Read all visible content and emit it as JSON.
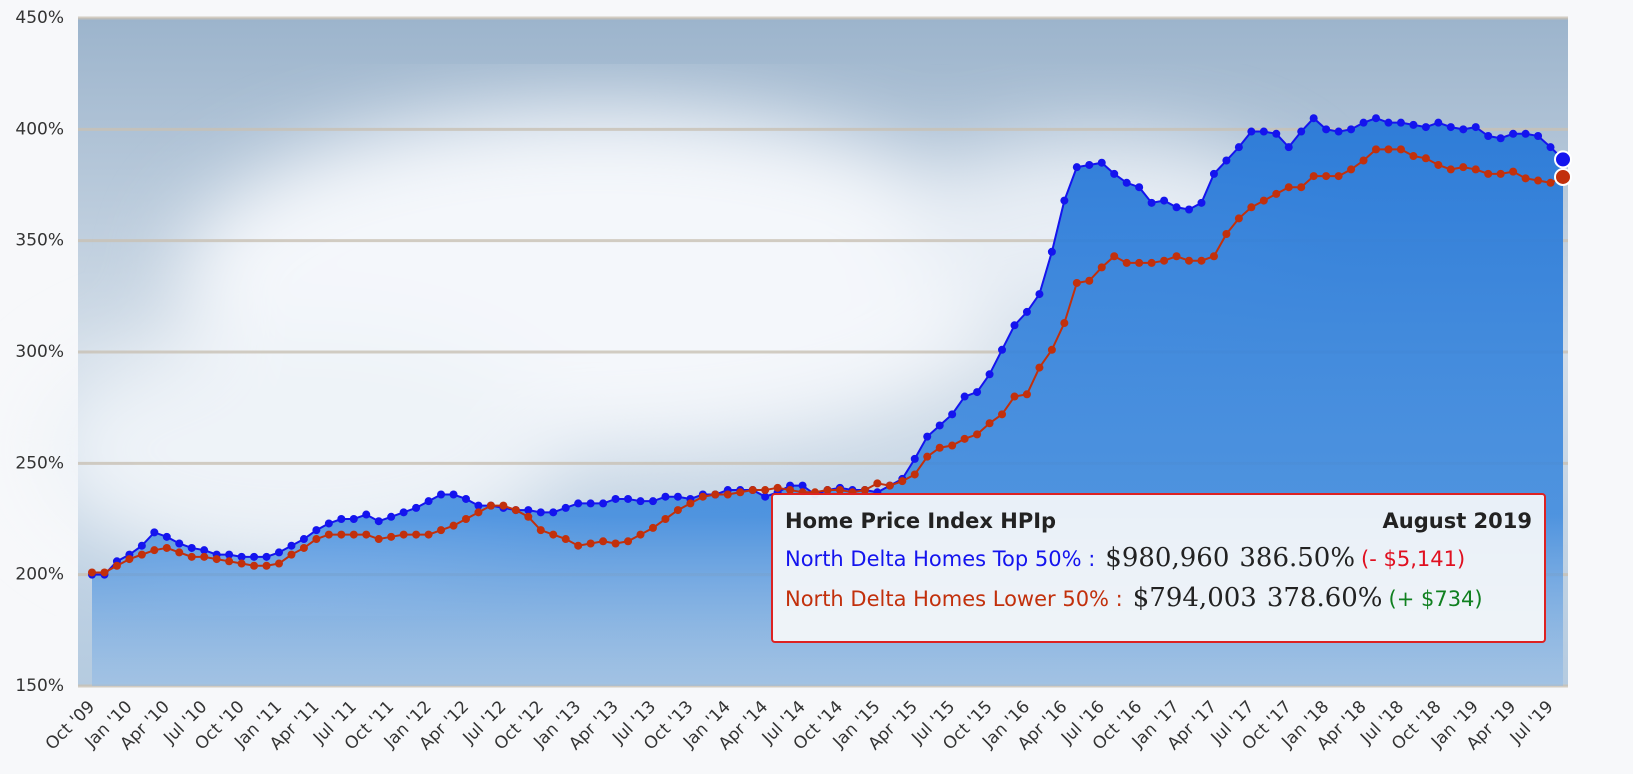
{
  "chart_data": {
    "type": "line",
    "categories": [
      "Oct '09",
      null,
      null,
      "Jan '10",
      null,
      null,
      "Apr '10",
      null,
      null,
      "Jul '10",
      null,
      null,
      "Oct '10",
      null,
      null,
      "Jan '11",
      null,
      null,
      "Apr '11",
      null,
      null,
      "Jul '11",
      null,
      null,
      "Oct '11",
      null,
      null,
      "Jan '12",
      null,
      null,
      "Apr '12",
      null,
      null,
      "Jul '12",
      null,
      null,
      "Oct '12",
      null,
      null,
      "Jan '13",
      null,
      null,
      "Apr '13",
      null,
      null,
      "Jul '13",
      null,
      null,
      "Oct '13",
      null,
      null,
      "Jan '14",
      null,
      null,
      "Apr '14",
      null,
      null,
      "Jul '14",
      null,
      null,
      "Oct '14",
      null,
      null,
      "Jan '15",
      null,
      null,
      "Apr '15",
      null,
      null,
      "Jul '15",
      null,
      null,
      "Oct '15",
      null,
      null,
      "Jan '16",
      null,
      null,
      "Apr '16",
      null,
      null,
      "Jul '16",
      null,
      null,
      "Oct '16",
      null,
      null,
      "Jan '17",
      null,
      null,
      "Apr '17",
      null,
      null,
      "Jul '17",
      null,
      null,
      "Oct '17",
      null,
      null,
      "Jan '18",
      null,
      null,
      "Apr '18",
      null,
      null,
      "Jul '18",
      null,
      null,
      "Oct '18",
      null,
      null,
      "Jan '19",
      null,
      null,
      "Apr '19",
      null,
      null,
      "Jul '19",
      null
    ],
    "series": [
      {
        "name": "North Delta Homes Top 50%",
        "color": "#1414ee",
        "values": [
          200,
          200,
          206,
          209,
          213,
          219,
          217,
          214,
          212,
          211,
          209,
          209,
          208,
          208,
          208,
          210,
          213,
          216,
          220,
          223,
          225,
          225,
          227,
          224,
          226,
          228,
          230,
          233,
          236,
          236,
          234,
          231,
          231,
          230,
          229,
          229,
          228,
          228,
          230,
          232,
          232,
          232,
          234,
          234,
          233,
          233,
          235,
          235,
          234,
          236,
          236,
          238,
          238,
          238,
          235,
          237,
          240,
          240,
          236,
          238,
          239,
          238,
          238,
          237,
          240,
          243,
          252,
          262,
          267,
          272,
          280,
          282,
          290,
          301,
          312,
          318,
          326,
          345,
          368,
          383,
          384,
          385,
          380,
          376,
          374,
          367,
          368,
          365,
          364,
          367,
          380,
          386,
          392,
          399,
          399,
          398,
          392,
          399,
          405,
          400,
          399,
          400,
          403,
          405,
          403,
          403,
          402,
          401,
          403,
          401,
          400,
          401,
          397,
          396,
          398,
          398,
          397,
          392,
          386.5
        ]
      },
      {
        "name": "North Delta Homes Lower 50%",
        "color": "#c2300c",
        "values": [
          201,
          201,
          204,
          207,
          209,
          211,
          212,
          210,
          208,
          208,
          207,
          206,
          205,
          204,
          204,
          205,
          209,
          212,
          216,
          218,
          218,
          218,
          218,
          216,
          217,
          218,
          218,
          218,
          220,
          222,
          225,
          228,
          231,
          231,
          229,
          226,
          220,
          218,
          216,
          213,
          214,
          215,
          214,
          215,
          218,
          221,
          225,
          229,
          232,
          235,
          236,
          236,
          237,
          238,
          238,
          239,
          238,
          237,
          237,
          238,
          238,
          237,
          238,
          241,
          240,
          242,
          245,
          253,
          257,
          258,
          261,
          263,
          268,
          272,
          280,
          281,
          293,
          301,
          313,
          331,
          332,
          338,
          343,
          340,
          340,
          340,
          341,
          343,
          341,
          341,
          343,
          353,
          360,
          365,
          368,
          371,
          374,
          374,
          379,
          379,
          379,
          382,
          386,
          391,
          391,
          391,
          388,
          387,
          384,
          382,
          383,
          382,
          380,
          380,
          381,
          378,
          377,
          376,
          378.6
        ]
      }
    ],
    "ylim": [
      150,
      450
    ],
    "yticks": [
      {
        "value": 150,
        "label": "150%"
      },
      {
        "value": 200,
        "label": "200%"
      },
      {
        "value": 250,
        "label": "250%"
      },
      {
        "value": 300,
        "label": "300%"
      },
      {
        "value": 350,
        "label": "350%"
      },
      {
        "value": 400,
        "label": "400%"
      },
      {
        "value": 450,
        "label": "450%"
      }
    ],
    "grid": true,
    "tooltip": {
      "title": "Home Price Index HPIp",
      "date": "August 2019",
      "rows": [
        {
          "label": "North Delta Homes Top 50% :",
          "price": "$980,960",
          "percent": "386.50%",
          "change": "(- $5,141)"
        },
        {
          "label": "North Delta Homes Lower 50% :",
          "price": "$794,003",
          "percent": "378.60%",
          "change": "(+ $734)"
        }
      ]
    }
  }
}
